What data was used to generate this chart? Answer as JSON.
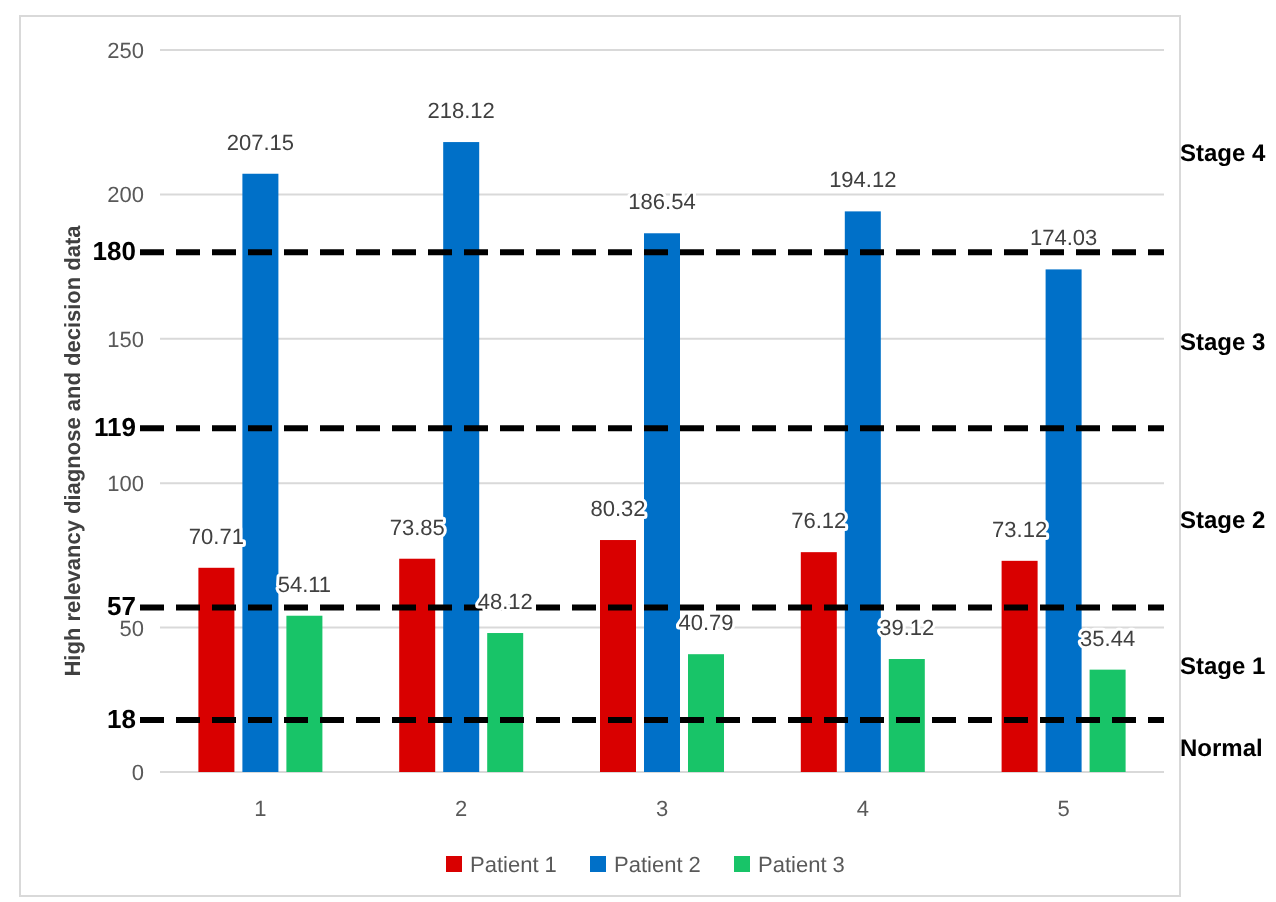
{
  "chart_data": {
    "type": "bar",
    "ylabel": "High relevancy diagnose and decision data",
    "categories": [
      "1",
      "2",
      "3",
      "4",
      "5"
    ],
    "series": [
      {
        "name": "Patient 1",
        "color": "#d90000",
        "values": [
          70.71,
          73.85,
          80.32,
          76.12,
          73.12
        ]
      },
      {
        "name": "Patient 2",
        "color": "#0070c8",
        "values": [
          207.15,
          218.12,
          186.54,
          194.12,
          174.03
        ]
      },
      {
        "name": "Patient 3",
        "color": "#18c468",
        "values": [
          54.11,
          48.12,
          40.79,
          39.12,
          35.44
        ]
      }
    ],
    "ylim": [
      0,
      250
    ],
    "yticks": [
      0,
      50,
      100,
      150,
      200,
      250
    ],
    "grid": "y",
    "legend": "bottom",
    "data_labels": true,
    "ref_lines": [
      {
        "axis": "y",
        "value": 180,
        "label": "180",
        "color": "#000000",
        "line_style": "dashed"
      },
      {
        "axis": "y",
        "value": 119,
        "label": "119",
        "color": "#000000",
        "line_style": "dashed"
      },
      {
        "axis": "y",
        "value": 57,
        "label": "57",
        "color": "#000000",
        "line_style": "dashed"
      },
      {
        "axis": "y",
        "value": 18,
        "label": "18",
        "color": "#000000",
        "line_style": "dashed"
      }
    ],
    "annotations": [
      "Stage 4",
      "Stage 3",
      "Stage 2",
      "Stage 1",
      "Normal"
    ]
  }
}
